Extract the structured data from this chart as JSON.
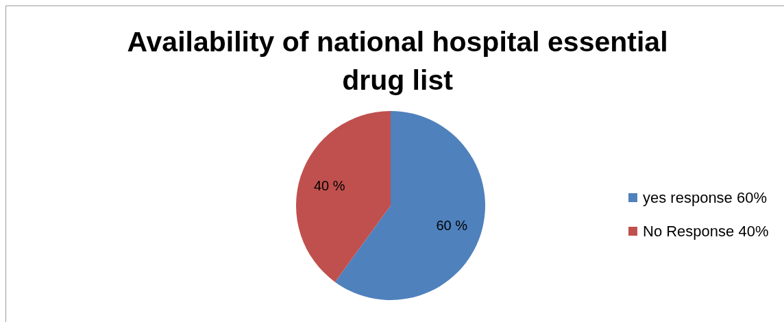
{
  "chart_data": {
    "type": "pie",
    "title": "Availability of national hospital essential drug list",
    "categories": [
      "yes response 60%",
      "No Response 40%"
    ],
    "values": [
      60,
      40
    ],
    "colors": [
      "#4f81bd",
      "#c0504d"
    ],
    "value_labels": [
      "60 %",
      "40 %"
    ],
    "legend": "right"
  }
}
